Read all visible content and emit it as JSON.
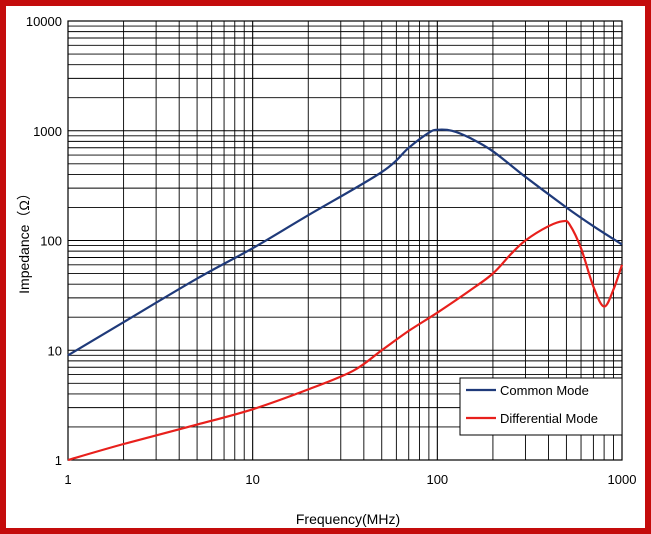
{
  "chart_data": {
    "type": "line",
    "title": "",
    "xlabel": "Frequency(MHz)",
    "ylabel": "Impedance（Ω）",
    "xscale": "log",
    "yscale": "log",
    "xlim": [
      1,
      1000
    ],
    "ylim": [
      1,
      10000
    ],
    "grid": true,
    "legend_position": "bottom-right",
    "x_tick_labels": [
      "1",
      "10",
      "100",
      "1000"
    ],
    "y_tick_labels": [
      "1",
      "10",
      "100",
      "1000",
      "10000"
    ],
    "series": [
      {
        "name": "Common Mode",
        "color": "#1f3a7a",
        "x": [
          1,
          2,
          5,
          10,
          20,
          50,
          70,
          90,
          100,
          120,
          150,
          200,
          300,
          500,
          700,
          1000
        ],
        "y": [
          9,
          18,
          45,
          85,
          170,
          420,
          700,
          960,
          1020,
          1000,
          860,
          650,
          380,
          200,
          135,
          92
        ]
      },
      {
        "name": "Differential Mode",
        "color": "#e8201c",
        "x": [
          1,
          2,
          5,
          10,
          20,
          35,
          50,
          70,
          100,
          150,
          200,
          250,
          300,
          400,
          480,
          520,
          600,
          700,
          800,
          900,
          1000
        ],
        "y": [
          1,
          1.4,
          2.1,
          2.9,
          4.4,
          6.5,
          10,
          15,
          22,
          35,
          50,
          75,
          100,
          135,
          150,
          140,
          85,
          38,
          25,
          36,
          60
        ]
      }
    ]
  }
}
